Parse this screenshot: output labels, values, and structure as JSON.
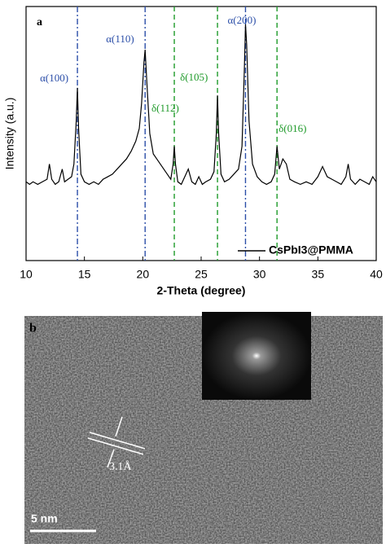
{
  "chart_data": {
    "type": "line",
    "x_label": "2-Theta (degree)",
    "y_label": "Intensity (a.u.)",
    "panel_label": "a",
    "xlim": [
      10,
      40
    ],
    "xticks": [
      10,
      15,
      20,
      25,
      30,
      35,
      40
    ],
    "ylim": [
      0,
      100
    ],
    "legend": "lower right",
    "series": [
      {
        "name": "CsPbI3@PMMA",
        "color": "#000000",
        "x": [
          10,
          10.3,
          10.6,
          11,
          11.4,
          11.8,
          12,
          12.2,
          12.5,
          12.8,
          13.1,
          13.3,
          13.6,
          13.9,
          14.1,
          14.3,
          14.4,
          14.5,
          14.7,
          15,
          15.4,
          15.8,
          16.2,
          16.6,
          17,
          17.4,
          17.8,
          18.2,
          18.6,
          19,
          19.4,
          19.7,
          19.9,
          20.1,
          20.2,
          20.35,
          20.6,
          20.9,
          21.2,
          21.5,
          21.8,
          22.1,
          22.4,
          22.6,
          22.7,
          22.8,
          23,
          23.3,
          23.6,
          23.9,
          24.2,
          24.5,
          24.8,
          25.1,
          25.4,
          25.8,
          26.1,
          26.3,
          26.4,
          26.5,
          26.7,
          27,
          27.4,
          27.8,
          28.2,
          28.5,
          28.7,
          28.8,
          28.9,
          29.1,
          29.4,
          29.8,
          30.2,
          30.6,
          31,
          31.3,
          31.5,
          31.7,
          32,
          32.3,
          32.6,
          33,
          33.5,
          34,
          34.5,
          35,
          35.4,
          35.8,
          36.2,
          36.6,
          37,
          37.4,
          37.6,
          37.8,
          38.2,
          38.6,
          39,
          39.4,
          39.7,
          40
        ],
        "values": [
          31,
          30,
          31,
          30,
          31,
          32,
          38,
          32,
          30,
          31,
          36,
          31,
          32,
          33,
          38,
          55,
          68,
          52,
          34,
          31,
          30,
          31,
          30,
          32,
          33,
          34,
          36,
          38,
          40,
          43,
          47,
          52,
          62,
          78,
          83,
          70,
          50,
          42,
          40,
          38,
          36,
          34,
          32,
          38,
          45,
          38,
          31,
          30,
          33,
          36,
          31,
          30,
          33,
          30,
          31,
          32,
          35,
          50,
          65,
          50,
          34,
          31,
          32,
          34,
          36,
          45,
          75,
          93,
          85,
          55,
          38,
          33,
          31,
          30,
          31,
          34,
          45,
          36,
          40,
          38,
          32,
          31,
          30,
          31,
          30,
          33,
          37,
          33,
          32,
          31,
          30,
          33,
          38,
          32,
          30,
          32,
          31,
          30,
          33,
          31
        ]
      }
    ],
    "reference_lines": [
      {
        "x": 14.4,
        "label": "α(100)",
        "color": "#2b4ea8",
        "style": "dashdot"
      },
      {
        "x": 20.2,
        "label": "α(110)",
        "color": "#2b4ea8",
        "style": "dashdot"
      },
      {
        "x": 28.8,
        "label": "α(200)",
        "color": "#2b4ea8",
        "style": "dashdot"
      },
      {
        "x": 22.7,
        "label": "δ(112)",
        "color": "#1f9a2a",
        "style": "dashed"
      },
      {
        "x": 26.4,
        "label": "δ(105)",
        "color": "#1f9a2a",
        "style": "dashed"
      },
      {
        "x": 31.5,
        "label": "δ(016)",
        "color": "#1f9a2a",
        "style": "dashed"
      }
    ]
  },
  "panel_b": {
    "label": "b",
    "d_spacing": "3.1Å",
    "scale_bar": "5 nm"
  }
}
